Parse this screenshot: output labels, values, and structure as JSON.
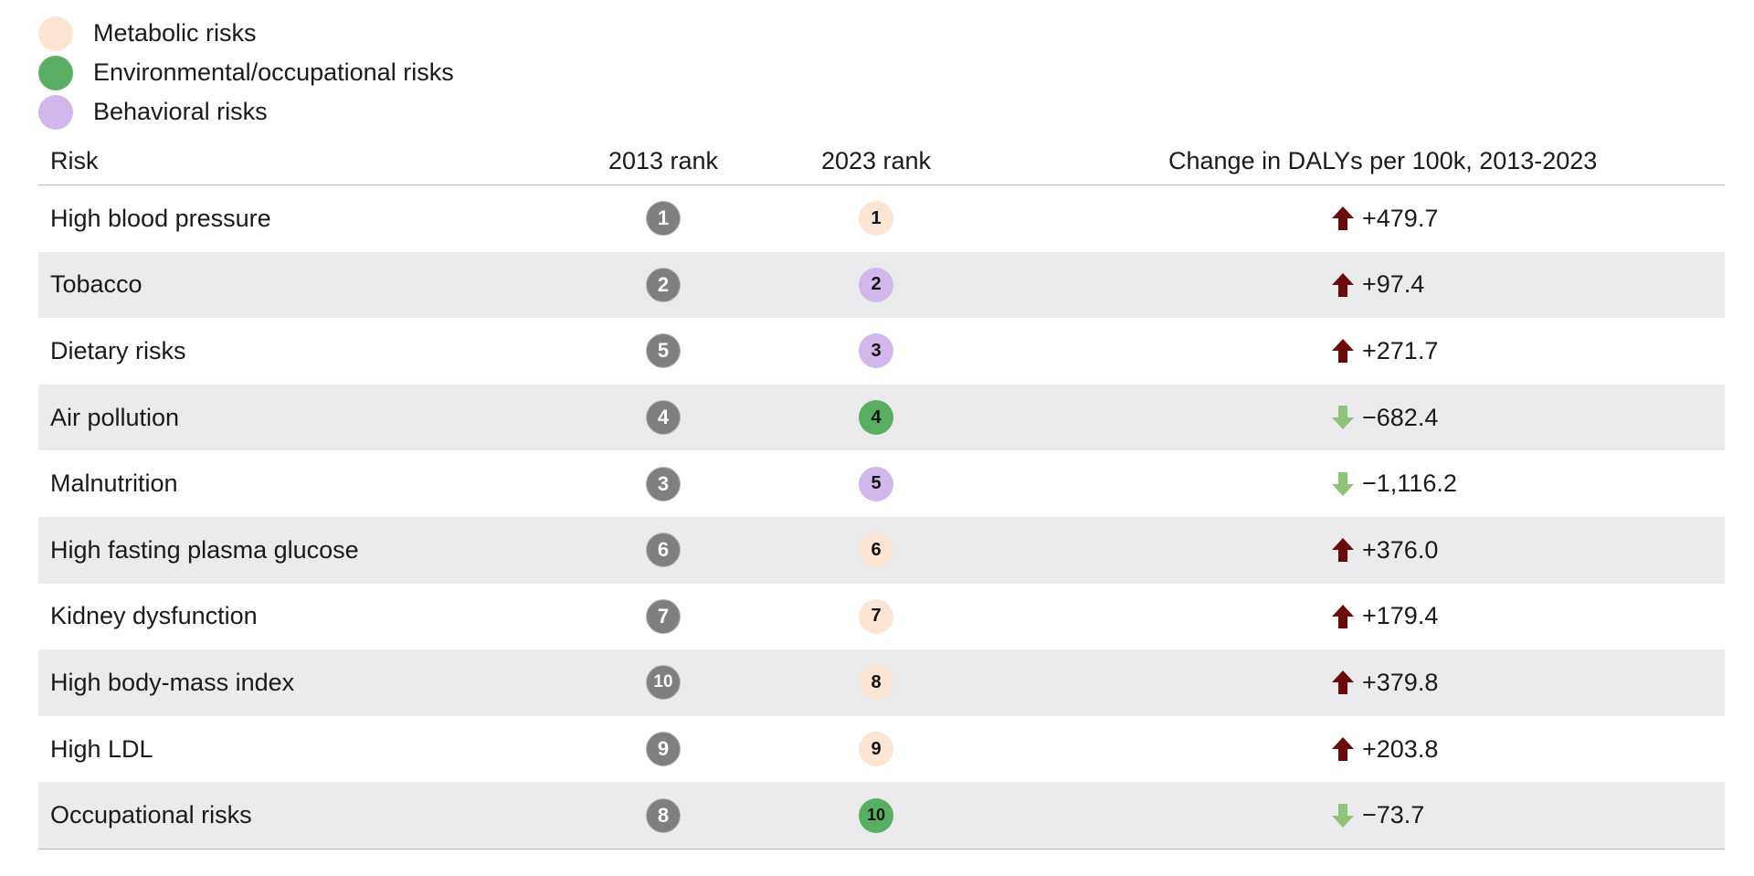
{
  "chart_data": {
    "type": "table",
    "legend": [
      {
        "name": "Metabolic risks",
        "color": "#fde5d3"
      },
      {
        "name": "Environmental/occupational risks",
        "color": "#5aae61"
      },
      {
        "name": "Behavioral risks",
        "color": "#d2b7ec"
      }
    ],
    "columns": [
      "Risk",
      "2013 rank",
      "2023 rank",
      "Change in DALYs per 100k, 2013-2023"
    ],
    "rows": [
      {
        "risk": "High blood pressure",
        "rank_2013": 1,
        "rank_2023": 1,
        "category": "Metabolic risks",
        "change": 479.7,
        "change_label": "+479.7",
        "direction": "up"
      },
      {
        "risk": "Tobacco",
        "rank_2013": 2,
        "rank_2023": 2,
        "category": "Behavioral risks",
        "change": 97.4,
        "change_label": "+97.4",
        "direction": "up"
      },
      {
        "risk": "Dietary risks",
        "rank_2013": 5,
        "rank_2023": 3,
        "category": "Behavioral risks",
        "change": 271.7,
        "change_label": "+271.7",
        "direction": "up"
      },
      {
        "risk": "Air pollution",
        "rank_2013": 4,
        "rank_2023": 4,
        "category": "Environmental/occupational risks",
        "change": -682.4,
        "change_label": "−682.4",
        "direction": "down"
      },
      {
        "risk": "Malnutrition",
        "rank_2013": 3,
        "rank_2023": 5,
        "category": "Behavioral risks",
        "change": -1116.2,
        "change_label": "−1,116.2",
        "direction": "down"
      },
      {
        "risk": "High fasting plasma glucose",
        "rank_2013": 6,
        "rank_2023": 6,
        "category": "Metabolic risks",
        "change": 376.0,
        "change_label": "+376.0",
        "direction": "up"
      },
      {
        "risk": "Kidney dysfunction",
        "rank_2013": 7,
        "rank_2023": 7,
        "category": "Metabolic risks",
        "change": 179.4,
        "change_label": "+179.4",
        "direction": "up"
      },
      {
        "risk": "High body-mass index",
        "rank_2013": 10,
        "rank_2023": 8,
        "category": "Metabolic risks",
        "change": 379.8,
        "change_label": "+379.8",
        "direction": "up"
      },
      {
        "risk": "High LDL",
        "rank_2013": 9,
        "rank_2023": 9,
        "category": "Metabolic risks",
        "change": 203.8,
        "change_label": "+203.8",
        "direction": "up"
      },
      {
        "risk": "Occupational risks",
        "rank_2013": 8,
        "rank_2023": 10,
        "category": "Environmental/occupational risks",
        "change": -73.7,
        "change_label": "−73.7",
        "direction": "down"
      }
    ],
    "colors": {
      "rank_2013_badge": "#7f7f7f",
      "arrow_up": "#6b0a0a",
      "arrow_down": "#8fc27a",
      "row_stripe": "#ebebed"
    }
  }
}
